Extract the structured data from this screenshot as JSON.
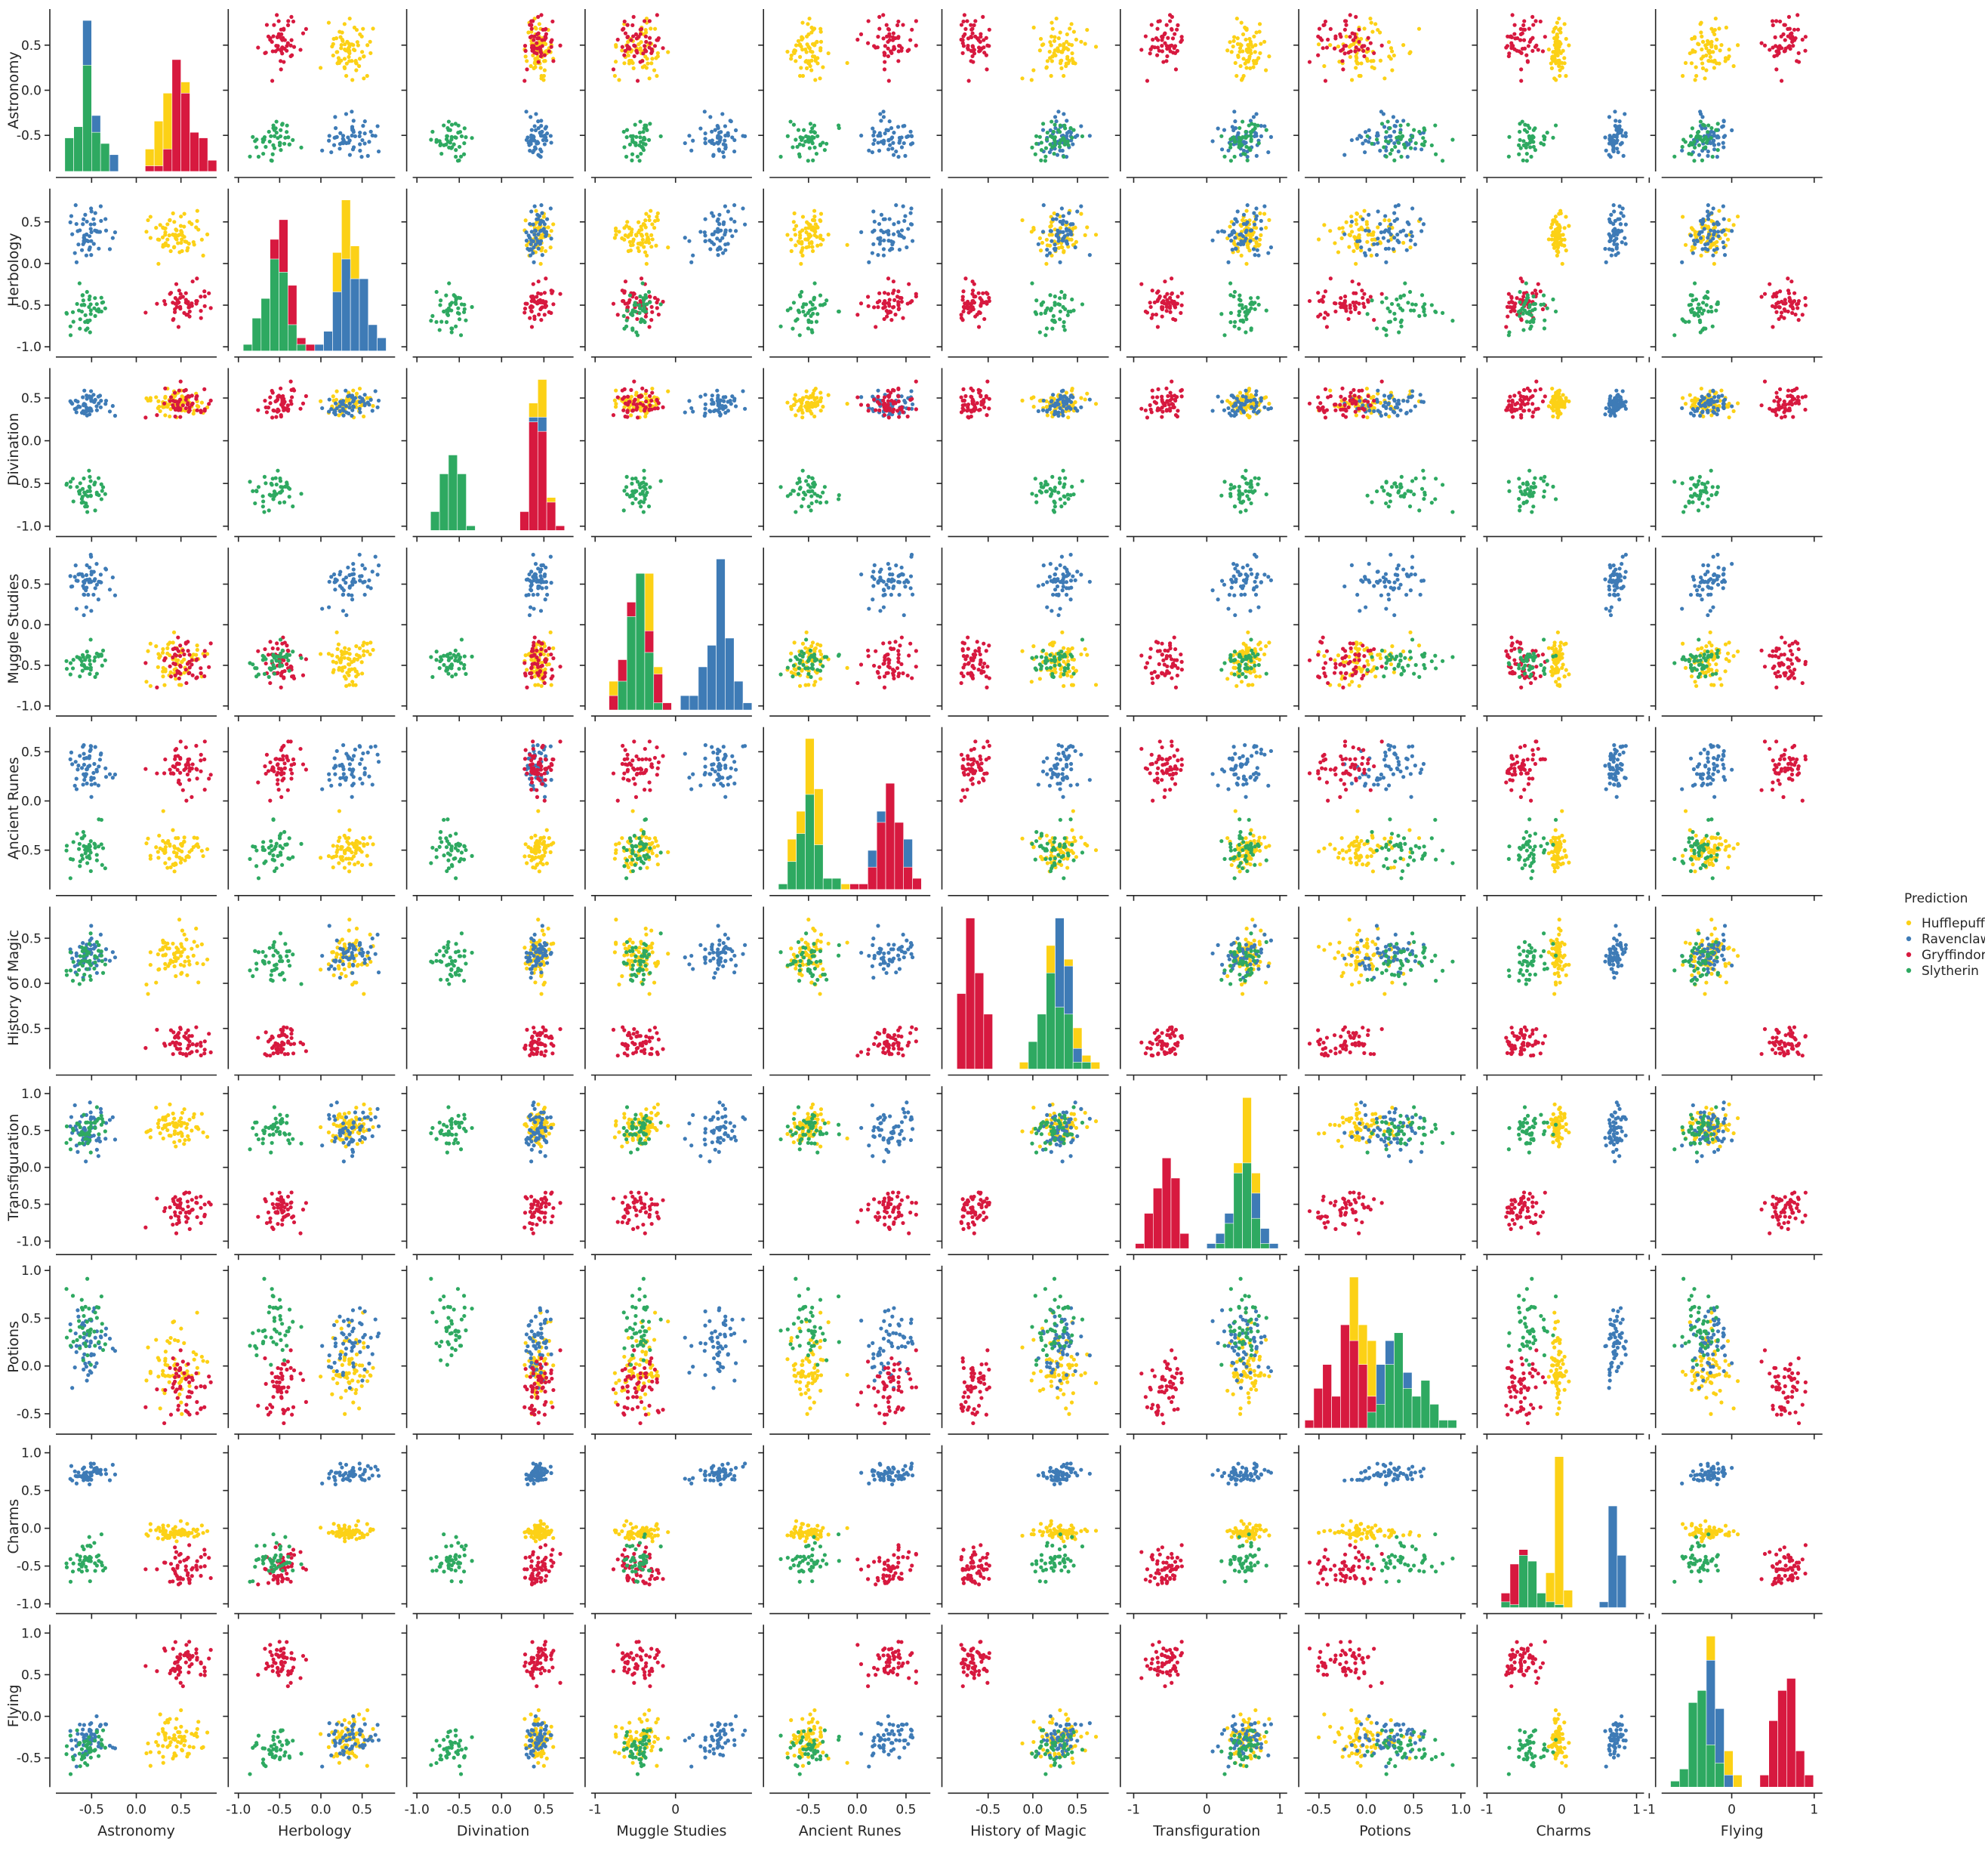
{
  "chart_data": {
    "type": "scatter",
    "subtype": "pairplot",
    "title": "",
    "diagonal": "histogram",
    "variables": [
      "Astronomy",
      "Herbology",
      "Divination",
      "Muggle Studies",
      "Ancient Runes",
      "History of Magic",
      "Transfiguration",
      "Potions",
      "Charms",
      "Flying"
    ],
    "legend": {
      "title": "Prediction",
      "placement": "right",
      "entries": [
        {
          "name": "Hufflepuff",
          "color": "#fcd116"
        },
        {
          "name": "Ravenclaw",
          "color": "#3e7bb6"
        },
        {
          "name": "Gryffindor",
          "color": "#d7193f"
        },
        {
          "name": "Slytherin",
          "color": "#2ea961"
        }
      ]
    },
    "axes": [
      {
        "name": "Astronomy",
        "range": [
          -0.9,
          0.9
        ],
        "ticks": [
          -0.5,
          0.0,
          0.5
        ],
        "tick_labels": [
          "-0.5",
          "0.0",
          "0.5"
        ]
      },
      {
        "name": "Herbology",
        "range": [
          -1.05,
          0.9
        ],
        "ticks": [
          -1.0,
          -0.5,
          0.0,
          0.5
        ],
        "tick_labels": [
          "-1.0",
          "-0.5",
          "0.0",
          "0.5"
        ]
      },
      {
        "name": "Divination",
        "range": [
          -1.05,
          0.85
        ],
        "ticks": [
          -1.0,
          -0.5,
          0.0,
          0.5
        ],
        "tick_labels": [
          "-1.0",
          "-0.5",
          "0.0",
          "0.5"
        ]
      },
      {
        "name": "Muggle Studies",
        "range": [
          -1.05,
          0.95
        ],
        "ticks": [
          -1.0,
          -0.5,
          0.0,
          0.5
        ],
        "tick_labels": [
          "-1.0",
          "-0.5",
          "0.0",
          "0.5"
        ],
        "x_ticks": [
          -1,
          0
        ],
        "x_tick_labels": [
          "-1",
          "0"
        ]
      },
      {
        "name": "Ancient Runes",
        "range": [
          -0.9,
          0.75
        ],
        "ticks": [
          -0.5,
          0.0,
          0.5
        ],
        "tick_labels": [
          "-0.5",
          "0.0",
          "0.5"
        ]
      },
      {
        "name": "History of Magic",
        "range": [
          -0.95,
          0.85
        ],
        "ticks": [
          -0.5,
          0.0,
          0.5
        ],
        "tick_labels": [
          "-0.5",
          "0.0",
          "0.5"
        ]
      },
      {
        "name": "Transfiguration",
        "range": [
          -1.1,
          1.1
        ],
        "ticks": [
          -1.0,
          -0.5,
          0.0,
          0.5,
          1.0
        ],
        "tick_labels": [
          "-1.0",
          "-0.5",
          "0.0",
          "0.5",
          "1.0"
        ],
        "x_ticks": [
          -1,
          0,
          1
        ],
        "x_tick_labels": [
          "-1",
          "0",
          "1"
        ]
      },
      {
        "name": "Potions",
        "range": [
          -0.65,
          1.05
        ],
        "ticks": [
          -0.5,
          0.0,
          0.5,
          1.0
        ],
        "tick_labels": [
          "-0.5",
          "0.0",
          "0.5",
          "1.0"
        ]
      },
      {
        "name": "Charms",
        "range": [
          -1.05,
          1.1
        ],
        "ticks": [
          -1.0,
          -0.5,
          0.0,
          0.5,
          1.0
        ],
        "tick_labels": [
          "-1.0",
          "-0.5",
          "0.0",
          "0.5",
          "1.0"
        ],
        "x_ticks": [
          -1,
          0,
          1
        ],
        "x_tick_labels": [
          "-1",
          "0",
          "1"
        ]
      },
      {
        "name": "Flying",
        "range": [
          -0.85,
          1.1
        ],
        "ticks": [
          -0.5,
          0.0,
          0.5,
          1.0
        ],
        "tick_labels": [
          "-0.5",
          "0.0",
          "0.5",
          "1.0"
        ],
        "x_ticks": [
          -1,
          0,
          1
        ],
        "x_tick_labels": [
          "-1",
          "0",
          "1"
        ]
      }
    ],
    "clusters": [
      {
        "house": "Hufflepuff",
        "n": 70,
        "center": [
          0.45,
          0.35,
          0.45,
          -0.45,
          -0.5,
          0.3,
          0.55,
          0.0,
          -0.05,
          -0.25
        ],
        "spread": [
          0.17,
          0.14,
          0.08,
          0.15,
          0.12,
          0.15,
          0.12,
          0.22,
          0.05,
          0.14
        ]
      },
      {
        "house": "Ravenclaw",
        "n": 55,
        "center": [
          -0.55,
          0.35,
          0.45,
          0.5,
          0.35,
          0.3,
          0.5,
          0.25,
          0.72,
          -0.25
        ],
        "spread": [
          0.12,
          0.15,
          0.07,
          0.15,
          0.13,
          0.12,
          0.15,
          0.2,
          0.06,
          0.12
        ]
      },
      {
        "house": "Gryffindor",
        "n": 55,
        "center": [
          0.55,
          -0.5,
          0.45,
          -0.45,
          0.35,
          -0.65,
          -0.6,
          -0.2,
          -0.55,
          0.65
        ],
        "spread": [
          0.15,
          0.1,
          0.09,
          0.15,
          0.13,
          0.08,
          0.15,
          0.18,
          0.12,
          0.12
        ]
      },
      {
        "house": "Slytherin",
        "n": 45,
        "center": [
          -0.55,
          -0.55,
          -0.6,
          -0.45,
          -0.5,
          0.3,
          0.5,
          0.4,
          -0.4,
          -0.4
        ],
        "spread": [
          0.11,
          0.15,
          0.12,
          0.1,
          0.12,
          0.12,
          0.12,
          0.22,
          0.13,
          0.12
        ]
      }
    ],
    "grid": false
  }
}
